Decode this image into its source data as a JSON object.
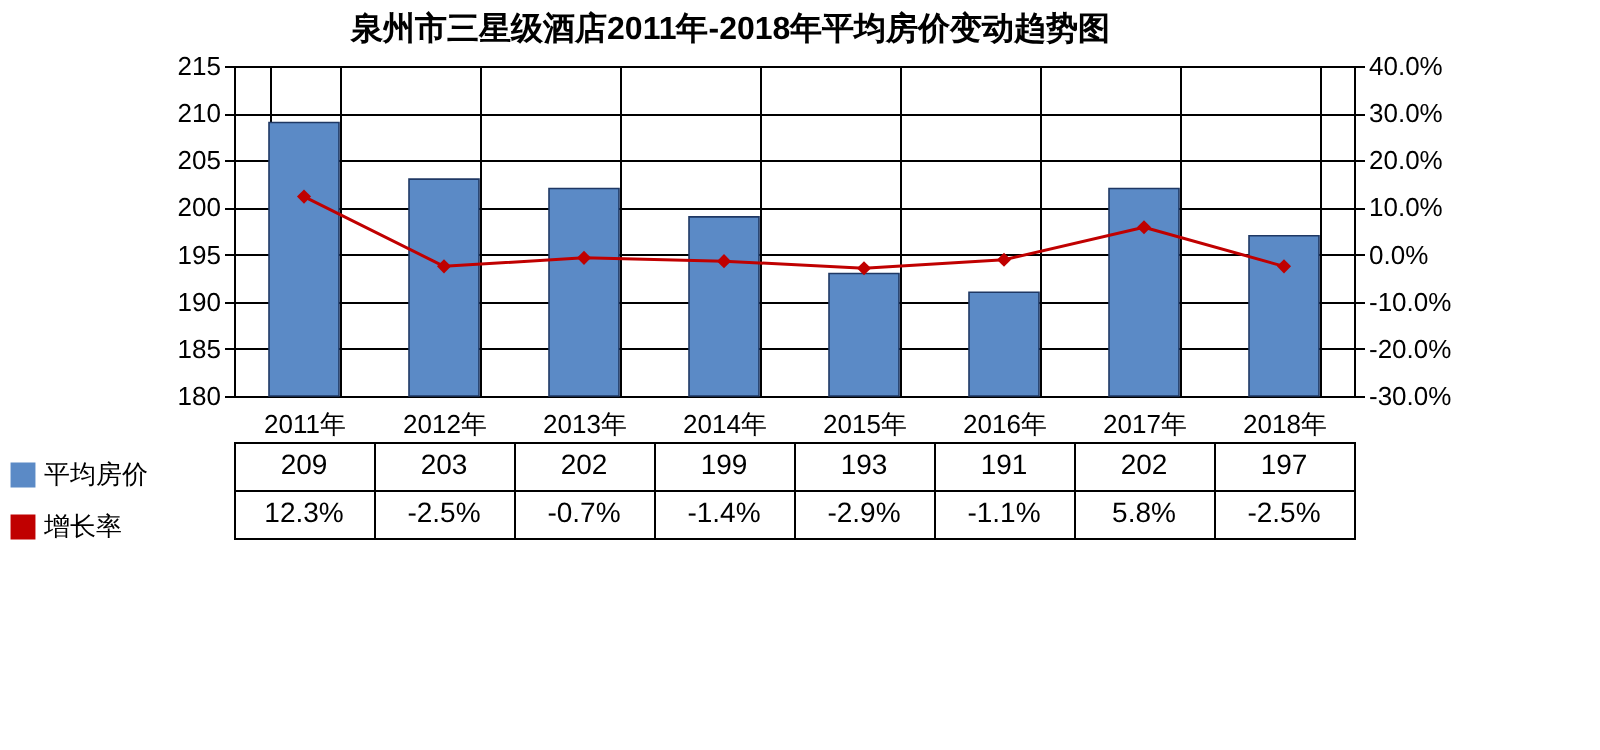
{
  "chart_data": {
    "type": "bar",
    "title": "泉州市三星级酒店2011年-2018年平均房价变动趋势图",
    "categories": [
      "2011年",
      "2012年",
      "2013年",
      "2014年",
      "2015年",
      "2016年",
      "2017年",
      "2018年"
    ],
    "series": [
      {
        "name": "平均房价",
        "color": "#5b8ac6",
        "values": [
          209,
          203,
          202,
          199,
          193,
          191,
          202,
          197
        ],
        "value_labels": [
          "209",
          "203",
          "202",
          "199",
          "193",
          "191",
          "202",
          "197"
        ]
      },
      {
        "name": "增长率",
        "type": "line",
        "axis": "y2",
        "color": "#c00000",
        "marker": "diamond",
        "values": [
          12.3,
          -2.5,
          -0.7,
          -1.4,
          -2.9,
          -1.1,
          5.8,
          -2.5
        ],
        "value_labels": [
          "12.3%",
          "-2.5%",
          "-0.7%",
          "-1.4%",
          "-2.9%",
          "-1.1%",
          "5.8%",
          "-2.5%"
        ]
      }
    ],
    "ylim": [
      180,
      215
    ],
    "yticks": [
      180,
      185,
      190,
      195,
      200,
      205,
      210,
      215
    ],
    "y2lim": [
      -30,
      40
    ],
    "y2ticks": [
      {
        "value": -30,
        "label": "-30.0%"
      },
      {
        "value": -20,
        "label": "-20.0%"
      },
      {
        "value": -10,
        "label": "-10.0%"
      },
      {
        "value": 0,
        "label": "0.0%"
      },
      {
        "value": 10,
        "label": "10.0%"
      },
      {
        "value": 20,
        "label": "20.0%"
      },
      {
        "value": 30,
        "label": "30.0%"
      },
      {
        "value": 40,
        "label": "40.0%"
      }
    ],
    "grid": "y",
    "legend": "bottom left"
  }
}
